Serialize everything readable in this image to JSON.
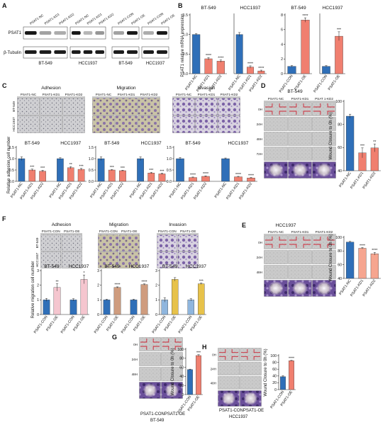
{
  "colors": {
    "blue": "#2f6fb8",
    "salmon": "#f07f6f",
    "salmon_light": "#f6a58f",
    "pink_oe": "#f5c6cf",
    "tan": "#cf9c7e",
    "gold": "#e7c24a",
    "blue_light": "#8fb6de",
    "violet": "#7b5fa8",
    "wound_red": "#cc2233"
  },
  "panels": {
    "A": {
      "label": "A",
      "groups": [
        {
          "lanes": [
            "PSAT1-NC",
            "PSAT1-KD1",
            "PSAT1-KD2"
          ],
          "cell": "BT-549"
        },
        {
          "lanes": [
            "PSAT1-NC",
            "PSAT1-KD1",
            "PSAT1-KD2"
          ],
          "cell": "HCC1937"
        },
        {
          "lanes": [
            "PSAT1-CON",
            "PSAT1-OE"
          ],
          "cell": "BT-549"
        },
        {
          "lanes": [
            "PSAT1-CON",
            "PSAT1-OE"
          ],
          "cell": "HCC1937"
        }
      ],
      "row_labels": [
        "PSAT1",
        "β-Tubulin"
      ],
      "band_intensity": [
        [
          1.0,
          0.35,
          0.3
        ],
        [
          1.0,
          0.25,
          0.4
        ],
        [
          0.35,
          1.0
        ],
        [
          0.3,
          1.0
        ]
      ]
    },
    "B": {
      "label": "B",
      "ylabel": "PSAT1 relative mRNA expression"
    },
    "C": {
      "label": "C",
      "assays": [
        "Adhesion",
        "Migration",
        "Invasion"
      ],
      "lanes": [
        "PSAT1-NC",
        "PSAT1-KD1",
        "PSAT1-KD2"
      ],
      "row_labels": [
        "BT-549",
        "HCC1937"
      ],
      "ylabel": "Relative adhesion cell number"
    },
    "D": {
      "label": "D",
      "cell": "BT-549",
      "lanes": [
        "PSAT1-NC",
        "PSAT1-KD1",
        "PSAT 1-KD2"
      ],
      "times": [
        "0H",
        "24H",
        "48H",
        "72H"
      ],
      "ylabel": "Wound Closure to 0h (%)"
    },
    "E": {
      "label": "E",
      "cell": "HCC1937",
      "lanes": [
        "PSAT1-NC",
        "PSAT1-KD1",
        "PSAT1-KD2"
      ],
      "times": [
        "0H",
        "24H",
        "48H"
      ],
      "ylabel": "Wound Closure to 0h (%)"
    },
    "F": {
      "label": "F",
      "assays": [
        "Adhesion",
        "Migration",
        "Invasion"
      ],
      "lanes": [
        "PSAT1-CON",
        "PSAT1-OE"
      ],
      "row_labels": [
        "BT-549",
        "HCC1937"
      ],
      "ylabel": "Relative migration cell number"
    },
    "G": {
      "label": "G",
      "cell": "BT-549",
      "times": [
        "0H",
        "24H",
        "48H"
      ],
      "footer": "PSAT1-CONPSAT1-OE",
      "ylabel": "Wound Closure to 0h (%)"
    },
    "H": {
      "label": "H",
      "cell": "HCC1937",
      "times": [
        "0H",
        "24H",
        "48H"
      ],
      "footer": "PSAT1-CONPSAT1-OE",
      "ylabel": "Wound Closure to 0h (%)"
    }
  },
  "chart_data": [
    {
      "panel": "B",
      "type": "bar",
      "title": "BT-549",
      "ylabel": "PSAT1 relative mRNA expression",
      "categories": [
        "PSAT1-NC",
        "PSAT1-KD1",
        "PSAT1-KD2"
      ],
      "values": [
        1.0,
        0.38,
        0.32
      ],
      "errors": [
        0.02,
        0.03,
        0.03
      ],
      "stars": [
        "",
        "****",
        "****"
      ],
      "colors": [
        "#2f6fb8",
        "#f07f6f",
        "#f07f6f"
      ],
      "ylim": [
        0,
        1.5
      ],
      "yticks": [
        "0.0",
        "0.5",
        "1.0",
        "1.5"
      ],
      "ylabel_shown": true
    },
    {
      "panel": "B",
      "type": "bar",
      "title": "HCC1937",
      "categories": [
        "PSAT1-NC",
        "PSAT1-KD1",
        "PSAT1-KD2"
      ],
      "values": [
        1.0,
        0.17,
        0.07
      ],
      "errors": [
        0.05,
        0.03,
        0.02
      ],
      "stars": [
        "",
        "****",
        "****"
      ],
      "colors": [
        "#2f6fb8",
        "#f07f6f",
        "#f07f6f"
      ],
      "ylim": [
        0,
        1.5
      ],
      "yticks": [],
      "ylabel_shown": false
    },
    {
      "panel": "B",
      "type": "bar",
      "title": "BT-549",
      "categories": [
        "PSAT1-CON",
        "PSAT1-OE"
      ],
      "values": [
        1.0,
        7.3
      ],
      "errors": [
        0.1,
        0.3
      ],
      "stars": [
        "",
        "****"
      ],
      "colors": [
        "#2f6fb8",
        "#f07f6f"
      ],
      "ylim": [
        0,
        8
      ],
      "yticks": [
        "0",
        "2",
        "4",
        "6",
        "8"
      ],
      "ylabel_shown": false
    },
    {
      "panel": "B",
      "type": "bar",
      "title": "HCC1937",
      "categories": [
        "PSAT1-CON",
        "PSAT1-OE"
      ],
      "values": [
        1.0,
        5.1
      ],
      "errors": [
        0.1,
        0.6
      ],
      "stars": [
        "",
        "***"
      ],
      "colors": [
        "#2f6fb8",
        "#f07f6f"
      ],
      "ylim": [
        0,
        8
      ],
      "yticks": [],
      "ylabel_shown": false
    },
    {
      "panel": "C",
      "type": "bar",
      "ylabel": "Relative adhesion cell number",
      "categories": [
        "PSAT1-NC",
        "PSAT1-KD1",
        "PSAT1-KD2",
        "PSAT1-NC",
        "PSAT1-KD1",
        "PSAT1-KD2"
      ],
      "group_titles": [
        "BT-549",
        "HCC1937"
      ],
      "values": [
        1.0,
        0.5,
        0.45,
        1.0,
        0.6,
        0.53
      ],
      "errors": [
        0.08,
        0.04,
        0.04,
        0.04,
        0.05,
        0.04
      ],
      "stars": [
        "",
        "***",
        "***",
        "",
        "**",
        "***"
      ],
      "colors": [
        "#2f6fb8",
        "#f07f6f",
        "#f07f6f",
        "#2f6fb8",
        "#f07f6f",
        "#f07f6f"
      ],
      "ylim": [
        0,
        1.5
      ],
      "yticks": [
        "0.0",
        "0.5",
        "1.0",
        "1.5"
      ],
      "ylabel_shown": true
    },
    {
      "panel": "C",
      "type": "bar",
      "categories": [
        "PSAT1-NC",
        "PSAT1-KD1",
        "PSAT1-KD2",
        "PSAT1-NC",
        "PSAT1-KD1",
        "PSAT1-KD2"
      ],
      "group_titles": [
        "BT-549",
        "HCC1937"
      ],
      "values": [
        1.0,
        0.5,
        0.47,
        1.0,
        0.37,
        0.33
      ],
      "errors": [
        0.08,
        0.02,
        0.02,
        0.08,
        0.03,
        0.03
      ],
      "stars": [
        "",
        "***",
        "***",
        "",
        "***",
        "***"
      ],
      "colors": [
        "#2f6fb8",
        "#f07f6f",
        "#f07f6f",
        "#2f6fb8",
        "#f07f6f",
        "#f07f6f"
      ],
      "ylim": [
        0,
        1.5
      ],
      "yticks": [
        "0.0",
        "0.5",
        "1.0",
        "1.5"
      ],
      "ylabel_shown": false
    },
    {
      "panel": "C",
      "type": "bar",
      "categories": [
        "PSAT1-NC",
        "PSAT1-KD1",
        "PSAT1-KD2",
        "PSAT1-NC",
        "PSAT1-KD1",
        "PSAT1-KD2"
      ],
      "group_titles": [
        "BT-549",
        "HCC1937"
      ],
      "values": [
        1.0,
        0.17,
        0.22,
        1.0,
        0.2,
        0.15
      ],
      "errors": [
        0.05,
        0.02,
        0.02,
        0.03,
        0.02,
        0.02
      ],
      "stars": [
        "",
        "****",
        "****",
        "",
        "****",
        "****"
      ],
      "colors": [
        "#2f6fb8",
        "#f07f6f",
        "#f07f6f",
        "#2f6fb8",
        "#f07f6f",
        "#f07f6f"
      ],
      "ylim": [
        0,
        1.5
      ],
      "yticks": [
        "0.0",
        "0.5",
        "1.0",
        "1.5"
      ],
      "ylabel_shown": false
    },
    {
      "panel": "D",
      "type": "bar",
      "ylabel": "Wound Closure to 0h (%)",
      "categories": [
        "PSAT1-NC",
        "PSAT1-KD1",
        "PSAT1-KD2"
      ],
      "values": [
        85,
        48,
        53
      ],
      "errors": [
        2,
        5,
        4
      ],
      "stars": [
        "",
        "***",
        "**"
      ],
      "colors": [
        "#2f6fb8",
        "#f07f6f",
        "#f07f6f"
      ],
      "ylim": [
        30,
        100
      ],
      "yticks": [
        "40",
        "60",
        "80",
        "100"
      ],
      "ylabel_shown": true
    },
    {
      "panel": "E",
      "type": "bar",
      "ylabel": "Wound Closure to 0h (%)",
      "categories": [
        "PSAT1-NC",
        "PSAT1-KD1",
        "PSAT1-KD2"
      ],
      "values": [
        93,
        84,
        76
      ],
      "errors": [
        1,
        1,
        2
      ],
      "stars": [
        "",
        "****",
        "****"
      ],
      "colors": [
        "#2f6fb8",
        "#f6a58f",
        "#f6a58f"
      ],
      "ylim": [
        40,
        100
      ],
      "yticks": [
        "40",
        "60",
        "80",
        "100"
      ],
      "ylabel_shown": true
    },
    {
      "panel": "F",
      "type": "bar",
      "ylabel": "Relative migration cell number",
      "categories": [
        "PSAT1-CON",
        "PSAT1-OE",
        "PSAT1-CON",
        "PSAT1-OE"
      ],
      "group_titles": [
        "BT-549",
        "HCC1937"
      ],
      "values": [
        1.0,
        1.85,
        1.0,
        2.4
      ],
      "errors": [
        0.1,
        0.25,
        0.08,
        0.3
      ],
      "stars": [
        "",
        "**",
        "",
        "*"
      ],
      "colors": [
        "#2f6fb8",
        "#f5c6cf",
        "#2f6fb8",
        "#f5c6cf"
      ],
      "ylim": [
        0,
        3
      ],
      "yticks": [
        "0",
        "1",
        "2",
        "3"
      ],
      "ylabel_shown": true
    },
    {
      "panel": "F",
      "type": "bar",
      "categories": [
        "PSAT1-CON",
        "PSAT1-OE",
        "PSAT1-CON",
        "PSAT1-OE"
      ],
      "group_titles": [
        "BT-549",
        "HCC1937"
      ],
      "values": [
        1.0,
        1.85,
        1.0,
        2.05
      ],
      "errors": [
        0.04,
        0.04,
        0.04,
        0.04
      ],
      "stars": [
        "",
        "****",
        "",
        "****"
      ],
      "colors": [
        "#2f6fb8",
        "#cf9c7e",
        "#2f6fb8",
        "#cf9c7e"
      ],
      "ylim": [
        0,
        3
      ],
      "yticks": [
        "0",
        "1",
        "2",
        "3"
      ],
      "ylabel_shown": false
    },
    {
      "panel": "F",
      "type": "bar",
      "categories": [
        "PSAT1-CON",
        "PSAT1-OE",
        "PSAT1-CON",
        "PSAT1-OE"
      ],
      "group_titles": [
        "BT-549",
        "HCC1937"
      ],
      "values": [
        1.0,
        2.4,
        1.0,
        2.1
      ],
      "errors": [
        0.15,
        0.12,
        0.08,
        0.05
      ],
      "stars": [
        "",
        "",
        "",
        "***"
      ],
      "colors": [
        "#8fb6de",
        "#e7c24a",
        "#8fb6de",
        "#e7c24a"
      ],
      "ylim": [
        0,
        3
      ],
      "yticks": [
        "0",
        "1",
        "2",
        "3"
      ],
      "ylabel_shown": false
    },
    {
      "panel": "G",
      "type": "bar",
      "ylabel": "Wound Closure to 0h (%)",
      "categories": [
        "PSAT1-CON",
        "PSAT1-OE"
      ],
      "values": [
        55,
        86
      ],
      "errors": [
        1,
        2
      ],
      "stars": [
        "",
        "***"
      ],
      "colors": [
        "#2f6fb8",
        "#f07f6f"
      ],
      "ylim": [
        0,
        100
      ],
      "yticks": [
        "0",
        "20",
        "40",
        "60",
        "80",
        "100"
      ],
      "ylabel_shown": true
    },
    {
      "panel": "H",
      "type": "bar",
      "ylabel": "Wound Closure to 0h (%)",
      "categories": [
        "PSAT1-CON",
        "PSAT1-OE"
      ],
      "values": [
        38,
        85
      ],
      "errors": [
        3,
        1
      ],
      "stars": [
        "",
        "****"
      ],
      "colors": [
        "#2f6fb8",
        "#f07f6f"
      ],
      "ylim": [
        0,
        100
      ],
      "yticks": [
        "0",
        "20",
        "40",
        "60",
        "80",
        "100"
      ],
      "ylabel_shown": true
    }
  ]
}
